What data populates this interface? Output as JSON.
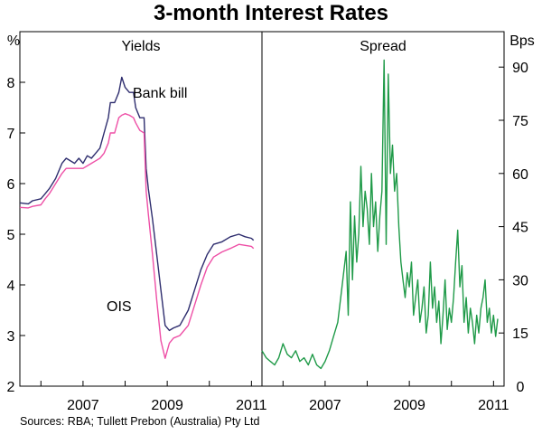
{
  "title": "3-month Interest Rates",
  "source": "Sources: RBA; Tullett Prebon (Australia) Pty Ltd",
  "colors": {
    "bank_bill": "#2e2d6e",
    "ois": "#ee4fa6",
    "spread": "#1f9a48",
    "frame": "#000000"
  },
  "chart_data": [
    {
      "type": "line",
      "panel_title": "Yields",
      "ylabel": "%",
      "ylim": [
        2,
        9
      ],
      "yticks": [
        2,
        3,
        4,
        5,
        6,
        7,
        8
      ],
      "xlim": [
        2005.5,
        2011.25
      ],
      "xticks": [
        2007,
        2009,
        2011
      ],
      "grid": false,
      "series": [
        {
          "name": "Bank bill",
          "color": "#2e2d6e",
          "points": [
            [
              2005.5,
              5.62
            ],
            [
              2005.7,
              5.6
            ],
            [
              2005.8,
              5.66
            ],
            [
              2006.0,
              5.7
            ],
            [
              2006.1,
              5.8
            ],
            [
              2006.2,
              5.9
            ],
            [
              2006.35,
              6.1
            ],
            [
              2006.5,
              6.4
            ],
            [
              2006.6,
              6.5
            ],
            [
              2006.8,
              6.4
            ],
            [
              2006.9,
              6.5
            ],
            [
              2007.0,
              6.4
            ],
            [
              2007.1,
              6.55
            ],
            [
              2007.2,
              6.5
            ],
            [
              2007.3,
              6.6
            ],
            [
              2007.4,
              6.7
            ],
            [
              2007.5,
              7.0
            ],
            [
              2007.6,
              7.3
            ],
            [
              2007.65,
              7.6
            ],
            [
              2007.75,
              7.6
            ],
            [
              2007.85,
              7.8
            ],
            [
              2007.92,
              8.1
            ],
            [
              2008.0,
              7.9
            ],
            [
              2008.1,
              7.8
            ],
            [
              2008.2,
              7.8
            ],
            [
              2008.25,
              7.5
            ],
            [
              2008.35,
              7.3
            ],
            [
              2008.45,
              7.3
            ],
            [
              2008.5,
              6.3
            ],
            [
              2008.55,
              5.9
            ],
            [
              2008.65,
              5.3
            ],
            [
              2008.75,
              4.6
            ],
            [
              2008.85,
              3.9
            ],
            [
              2008.95,
              3.2
            ],
            [
              2009.05,
              3.1
            ],
            [
              2009.15,
              3.15
            ],
            [
              2009.3,
              3.2
            ],
            [
              2009.5,
              3.5
            ],
            [
              2009.65,
              3.9
            ],
            [
              2009.8,
              4.3
            ],
            [
              2009.95,
              4.6
            ],
            [
              2010.1,
              4.8
            ],
            [
              2010.3,
              4.85
            ],
            [
              2010.5,
              4.95
            ],
            [
              2010.7,
              5.0
            ],
            [
              2010.85,
              4.95
            ],
            [
              2011.0,
              4.92
            ],
            [
              2011.05,
              4.88
            ]
          ]
        },
        {
          "name": "OIS",
          "color": "#ee4fa6",
          "points": [
            [
              2005.5,
              5.53
            ],
            [
              2005.7,
              5.52
            ],
            [
              2005.8,
              5.55
            ],
            [
              2006.0,
              5.58
            ],
            [
              2006.1,
              5.7
            ],
            [
              2006.2,
              5.8
            ],
            [
              2006.35,
              6.0
            ],
            [
              2006.5,
              6.2
            ],
            [
              2006.6,
              6.3
            ],
            [
              2006.8,
              6.3
            ],
            [
              2006.9,
              6.3
            ],
            [
              2007.0,
              6.3
            ],
            [
              2007.1,
              6.35
            ],
            [
              2007.2,
              6.4
            ],
            [
              2007.3,
              6.45
            ],
            [
              2007.4,
              6.5
            ],
            [
              2007.5,
              6.6
            ],
            [
              2007.6,
              6.8
            ],
            [
              2007.65,
              7.0
            ],
            [
              2007.75,
              7.0
            ],
            [
              2007.85,
              7.3
            ],
            [
              2007.92,
              7.35
            ],
            [
              2008.0,
              7.38
            ],
            [
              2008.1,
              7.35
            ],
            [
              2008.2,
              7.3
            ],
            [
              2008.25,
              7.2
            ],
            [
              2008.35,
              7.05
            ],
            [
              2008.45,
              7.0
            ],
            [
              2008.5,
              5.85
            ],
            [
              2008.55,
              5.4
            ],
            [
              2008.65,
              4.6
            ],
            [
              2008.75,
              3.7
            ],
            [
              2008.85,
              2.9
            ],
            [
              2008.95,
              2.55
            ],
            [
              2009.05,
              2.85
            ],
            [
              2009.15,
              2.95
            ],
            [
              2009.3,
              3.0
            ],
            [
              2009.5,
              3.2
            ],
            [
              2009.65,
              3.6
            ],
            [
              2009.8,
              4.0
            ],
            [
              2009.95,
              4.35
            ],
            [
              2010.1,
              4.55
            ],
            [
              2010.3,
              4.65
            ],
            [
              2010.5,
              4.72
            ],
            [
              2010.7,
              4.8
            ],
            [
              2010.85,
              4.78
            ],
            [
              2011.0,
              4.76
            ],
            [
              2011.05,
              4.72
            ]
          ]
        }
      ],
      "annotations": [
        {
          "text": "Bank bill",
          "series": "Bank bill"
        },
        {
          "text": "OIS",
          "series": "OIS"
        }
      ]
    },
    {
      "type": "line",
      "panel_title": "Spread",
      "ylabel": "Bps",
      "ylim": [
        0,
        100
      ],
      "yticks": [
        0,
        15,
        30,
        45,
        60,
        75,
        90
      ],
      "xlim": [
        2005.5,
        2011.25
      ],
      "xticks": [
        2007,
        2009,
        2011
      ],
      "grid": false,
      "series": [
        {
          "name": "Spread",
          "color": "#1f9a48",
          "points": [
            [
              2005.5,
              10
            ],
            [
              2005.6,
              8
            ],
            [
              2005.7,
              7
            ],
            [
              2005.8,
              6
            ],
            [
              2005.9,
              8
            ],
            [
              2006.0,
              12
            ],
            [
              2006.1,
              9
            ],
            [
              2006.2,
              8
            ],
            [
              2006.3,
              10
            ],
            [
              2006.4,
              7
            ],
            [
              2006.5,
              8
            ],
            [
              2006.6,
              6
            ],
            [
              2006.7,
              9
            ],
            [
              2006.8,
              6
            ],
            [
              2006.9,
              5
            ],
            [
              2007.0,
              7
            ],
            [
              2007.1,
              10
            ],
            [
              2007.2,
              14
            ],
            [
              2007.3,
              18
            ],
            [
              2007.4,
              28
            ],
            [
              2007.5,
              38
            ],
            [
              2007.55,
              20
            ],
            [
              2007.6,
              52
            ],
            [
              2007.65,
              30
            ],
            [
              2007.7,
              48
            ],
            [
              2007.75,
              35
            ],
            [
              2007.8,
              43
            ],
            [
              2007.85,
              62
            ],
            [
              2007.9,
              45
            ],
            [
              2007.95,
              55
            ],
            [
              2008.0,
              50
            ],
            [
              2008.05,
              40
            ],
            [
              2008.1,
              60
            ],
            [
              2008.15,
              45
            ],
            [
              2008.2,
              52
            ],
            [
              2008.25,
              38
            ],
            [
              2008.3,
              48
            ],
            [
              2008.35,
              55
            ],
            [
              2008.4,
              92
            ],
            [
              2008.45,
              40
            ],
            [
              2008.5,
              88
            ],
            [
              2008.55,
              60
            ],
            [
              2008.6,
              68
            ],
            [
              2008.65,
              55
            ],
            [
              2008.7,
              60
            ],
            [
              2008.75,
              45
            ],
            [
              2008.8,
              35
            ],
            [
              2008.85,
              30
            ],
            [
              2008.9,
              25
            ],
            [
              2008.95,
              32
            ],
            [
              2009.0,
              28
            ],
            [
              2009.05,
              35
            ],
            [
              2009.1,
              20
            ],
            [
              2009.15,
              25
            ],
            [
              2009.2,
              30
            ],
            [
              2009.25,
              18
            ],
            [
              2009.3,
              22
            ],
            [
              2009.35,
              28
            ],
            [
              2009.4,
              15
            ],
            [
              2009.45,
              20
            ],
            [
              2009.5,
              35
            ],
            [
              2009.55,
              22
            ],
            [
              2009.6,
              28
            ],
            [
              2009.65,
              18
            ],
            [
              2009.7,
              24
            ],
            [
              2009.75,
              12
            ],
            [
              2009.8,
              20
            ],
            [
              2009.85,
              30
            ],
            [
              2009.9,
              16
            ],
            [
              2009.95,
              22
            ],
            [
              2010.0,
              18
            ],
            [
              2010.05,
              25
            ],
            [
              2010.1,
              35
            ],
            [
              2010.15,
              44
            ],
            [
              2010.2,
              28
            ],
            [
              2010.25,
              34
            ],
            [
              2010.3,
              18
            ],
            [
              2010.35,
              25
            ],
            [
              2010.4,
              15
            ],
            [
              2010.45,
              22
            ],
            [
              2010.5,
              18
            ],
            [
              2010.55,
              12
            ],
            [
              2010.6,
              20
            ],
            [
              2010.65,
              15
            ],
            [
              2010.7,
              22
            ],
            [
              2010.75,
              25
            ],
            [
              2010.8,
              30
            ],
            [
              2010.85,
              18
            ],
            [
              2010.9,
              22
            ],
            [
              2010.95,
              15
            ],
            [
              2011.0,
              20
            ],
            [
              2011.05,
              14
            ],
            [
              2011.1,
              19
            ]
          ]
        }
      ]
    }
  ]
}
